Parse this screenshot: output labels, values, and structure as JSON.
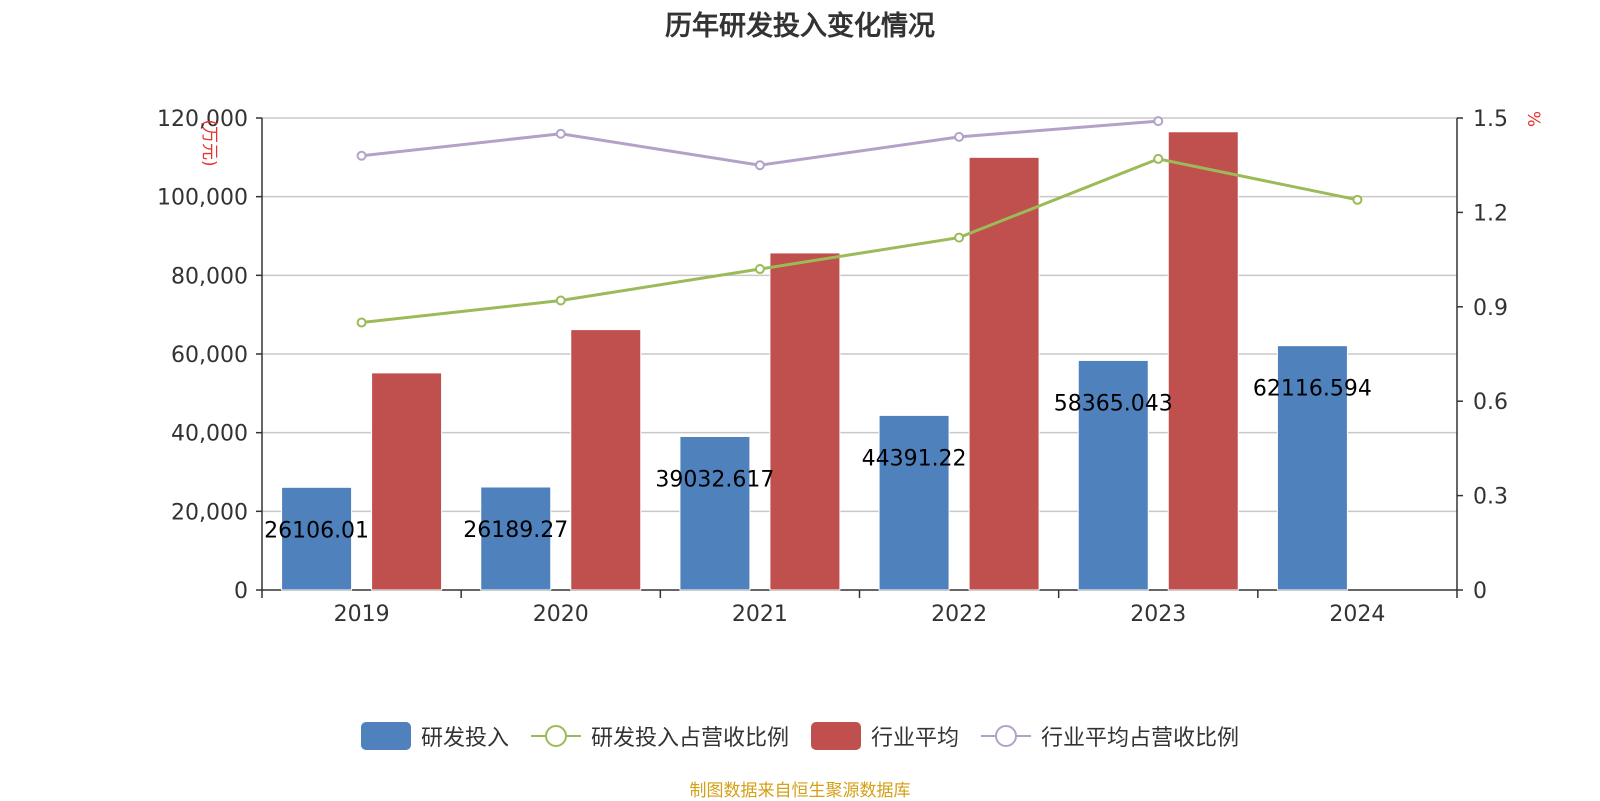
{
  "chart_data": {
    "type": "bar",
    "title": "历年研发投入变化情况",
    "categories": [
      "2019",
      "2020",
      "2021",
      "2022",
      "2023",
      "2024"
    ],
    "ylabel_left": "万元",
    "ylabel_right": "%",
    "ylim_left": [
      0,
      120000
    ],
    "ylim_right": [
      0,
      1.5
    ],
    "yticks_left": [
      "0",
      "20,000",
      "40,000",
      "60,000",
      "80,000",
      "100,000",
      "120,000"
    ],
    "yticks_right": [
      "0",
      "0.3",
      "0.6",
      "0.9",
      "1.2",
      "1.5"
    ],
    "grid": true,
    "legend_position": "bottom",
    "series": [
      {
        "name": "研发投入",
        "type": "bar",
        "axis": "left",
        "color": "#4f81bd",
        "values": [
          26106.01,
          26189.27,
          39032.617,
          44391.22,
          58365.043,
          62116.594
        ],
        "labels": [
          "26106.01",
          "26189.27",
          "39032.617",
          "44391.22",
          "58365.043",
          "62116.594"
        ]
      },
      {
        "name": "研发投入占营收比例",
        "type": "line",
        "axis": "right",
        "color": "#9bbb59",
        "values": [
          0.85,
          0.92,
          1.02,
          1.12,
          1.37,
          1.24
        ]
      },
      {
        "name": "行业平均",
        "type": "bar",
        "axis": "left",
        "color": "#c0504d",
        "values": [
          55200,
          66200,
          85700,
          110000,
          116500,
          null
        ]
      },
      {
        "name": "行业平均占营收比例",
        "type": "line",
        "axis": "right",
        "color": "#b3a2c7",
        "values": [
          1.38,
          1.45,
          1.35,
          1.44,
          1.49,
          null
        ]
      }
    ]
  },
  "source_note": "制图数据来自恒生聚源数据库"
}
